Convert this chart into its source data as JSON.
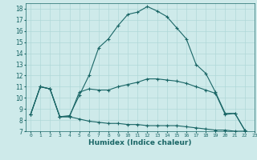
{
  "xlabel": "Humidex (Indice chaleur)",
  "xlim": [
    -0.5,
    23
  ],
  "ylim": [
    7,
    18.5
  ],
  "xticks": [
    0,
    1,
    2,
    3,
    4,
    5,
    6,
    7,
    8,
    9,
    10,
    11,
    12,
    13,
    14,
    15,
    16,
    17,
    18,
    19,
    20,
    21,
    22,
    23
  ],
  "yticks": [
    7,
    8,
    9,
    10,
    11,
    12,
    13,
    14,
    15,
    16,
    17,
    18
  ],
  "bg_color": "#ceeaea",
  "grid_color": "#b0d8d8",
  "line_color": "#1a6666",
  "series": [
    [
      8.5,
      11.0,
      10.8,
      8.3,
      8.4,
      10.2,
      12.0,
      14.5,
      15.3,
      16.5,
      17.5,
      17.7,
      18.2,
      17.8,
      17.3,
      16.3,
      15.3,
      13.0,
      12.2,
      10.5,
      8.6,
      8.6,
      7.1
    ],
    [
      8.5,
      11.0,
      10.8,
      8.3,
      8.3,
      10.5,
      10.8,
      10.7,
      10.7,
      11.0,
      11.2,
      11.4,
      11.7,
      11.7,
      11.6,
      11.5,
      11.3,
      11.0,
      10.7,
      10.4,
      8.5,
      8.6,
      7.1
    ],
    [
      8.5,
      11.0,
      10.8,
      8.3,
      8.3,
      8.1,
      7.9,
      7.8,
      7.7,
      7.7,
      7.6,
      7.6,
      7.5,
      7.5,
      7.5,
      7.5,
      7.4,
      7.3,
      7.2,
      7.1,
      7.1,
      7.0,
      7.0
    ]
  ]
}
